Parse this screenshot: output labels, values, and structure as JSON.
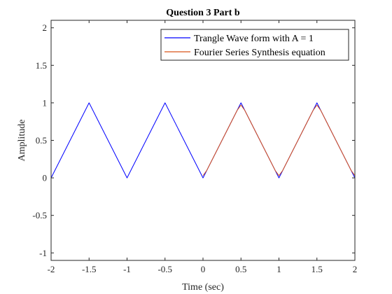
{
  "chart_data": {
    "type": "line",
    "title": "Question 3 Part b",
    "xlabel": "Time (sec)",
    "ylabel": "Amplitude",
    "xlim": [
      -2,
      2
    ],
    "ylim": [
      -1.1,
      2.1
    ],
    "xticks": [
      -2,
      -1.5,
      -1,
      -0.5,
      0,
      0.5,
      1,
      1.5,
      2
    ],
    "xtick_labels": [
      "-2",
      "-1.5",
      "-1",
      "-0.5",
      "0",
      "0.5",
      "1",
      "1.5",
      "2"
    ],
    "yticks": [
      -1,
      -0.5,
      0,
      0.5,
      1,
      1.5,
      2
    ],
    "ytick_labels": [
      "-1",
      "-0.5",
      "0",
      "0.5",
      "1",
      "1.5",
      "2"
    ],
    "grid": false,
    "legend_position": "top-right",
    "series": [
      {
        "name": "Trangle Wave form with A = 1",
        "color": "#0000ff",
        "x": [
          -2,
          -1.5,
          -1,
          -0.5,
          0,
          0.5,
          1,
          1.5,
          2
        ],
        "y": [
          0,
          1,
          0,
          1,
          0,
          1,
          0,
          1,
          0
        ]
      },
      {
        "name": "Fourier Series Synthesis equation",
        "color": "#d95319",
        "x": [
          0,
          0.05,
          0.45,
          0.5,
          0.55,
          0.95,
          1,
          1.05,
          1.45,
          1.5,
          1.55,
          1.95,
          2
        ],
        "y": [
          0.03,
          0.1,
          0.9,
          0.97,
          0.9,
          0.1,
          0.03,
          0.1,
          0.9,
          0.97,
          0.9,
          0.1,
          0.03
        ]
      }
    ]
  }
}
